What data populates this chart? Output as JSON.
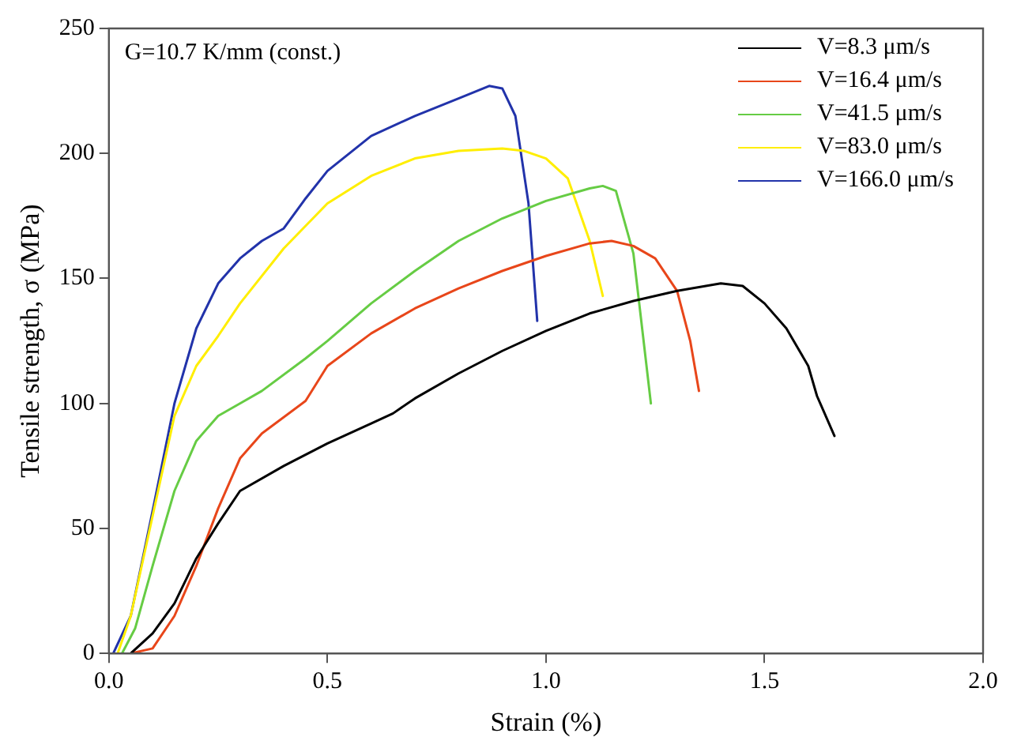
{
  "chart_data": {
    "type": "line",
    "xlabel": "Strain (%)",
    "ylabel": "Tensile strength, σ (MPa)",
    "annotations": [
      "G=10.7 K/mm (const.)"
    ],
    "xlim": [
      0,
      2
    ],
    "xticks": [
      {
        "value": 0,
        "label": "0.0"
      },
      {
        "value": 0.5,
        "label": "0.5"
      },
      {
        "value": 1,
        "label": "1.0"
      },
      {
        "value": 1.5,
        "label": "1.5"
      },
      {
        "value": 2,
        "label": "2.0"
      }
    ],
    "ylim": [
      0,
      250
    ],
    "yticks": [
      0,
      50,
      100,
      150,
      200,
      250
    ],
    "grid": false,
    "legend": "top right",
    "marker": "none",
    "line_style": "solid",
    "series": [
      {
        "name": "V=8.3 μm/s",
        "color": "#000000",
        "x": [
          0.05,
          0.1,
          0.15,
          0.2,
          0.25,
          0.3,
          0.4,
          0.5,
          0.6,
          0.65,
          0.7,
          0.8,
          0.9,
          1.0,
          1.1,
          1.2,
          1.3,
          1.4,
          1.45,
          1.5,
          1.55,
          1.6,
          1.62,
          1.66
        ],
        "values": [
          0,
          8,
          20,
          38,
          52,
          65,
          75,
          84,
          92,
          96,
          102,
          112,
          121,
          129,
          136,
          141,
          145,
          148,
          147,
          140,
          130,
          115,
          103,
          87
        ]
      },
      {
        "name": "V=16.4 μm/s",
        "color": "#e8461a",
        "x": [
          0.05,
          0.1,
          0.15,
          0.2,
          0.25,
          0.3,
          0.35,
          0.45,
          0.5,
          0.6,
          0.7,
          0.8,
          0.9,
          1.0,
          1.1,
          1.15,
          1.2,
          1.25,
          1.3,
          1.33,
          1.35
        ],
        "values": [
          0,
          2,
          15,
          35,
          58,
          78,
          88,
          101,
          115,
          128,
          138,
          146,
          153,
          159,
          164,
          165,
          163,
          158,
          145,
          125,
          105
        ]
      },
      {
        "name": "V=41.5 μm/s",
        "color": "#66cc44",
        "x": [
          0.03,
          0.06,
          0.1,
          0.15,
          0.2,
          0.25,
          0.3,
          0.35,
          0.45,
          0.5,
          0.6,
          0.7,
          0.8,
          0.9,
          1.0,
          1.1,
          1.13,
          1.16,
          1.2,
          1.22,
          1.24
        ],
        "values": [
          0,
          10,
          35,
          65,
          85,
          95,
          100,
          105,
          118,
          125,
          140,
          153,
          165,
          174,
          181,
          186,
          187,
          185,
          160,
          130,
          100
        ]
      },
      {
        "name": "V=83.0 μm/s",
        "color": "#ffee00",
        "x": [
          0.02,
          0.05,
          0.1,
          0.15,
          0.2,
          0.25,
          0.3,
          0.4,
          0.5,
          0.6,
          0.7,
          0.8,
          0.9,
          0.95,
          1.0,
          1.05,
          1.1,
          1.13
        ],
        "values": [
          0,
          15,
          55,
          95,
          115,
          127,
          140,
          162,
          180,
          191,
          198,
          201,
          202,
          201,
          198,
          190,
          165,
          143
        ]
      },
      {
        "name": "V=166.0 μm/s",
        "color": "#2233aa",
        "x": [
          0.01,
          0.05,
          0.1,
          0.15,
          0.2,
          0.25,
          0.3,
          0.35,
          0.4,
          0.45,
          0.5,
          0.6,
          0.7,
          0.8,
          0.87,
          0.9,
          0.93,
          0.96,
          0.98
        ],
        "values": [
          0,
          15,
          57,
          100,
          130,
          148,
          158,
          165,
          170,
          182,
          193,
          207,
          215,
          222,
          227,
          226,
          215,
          180,
          133
        ]
      }
    ]
  }
}
